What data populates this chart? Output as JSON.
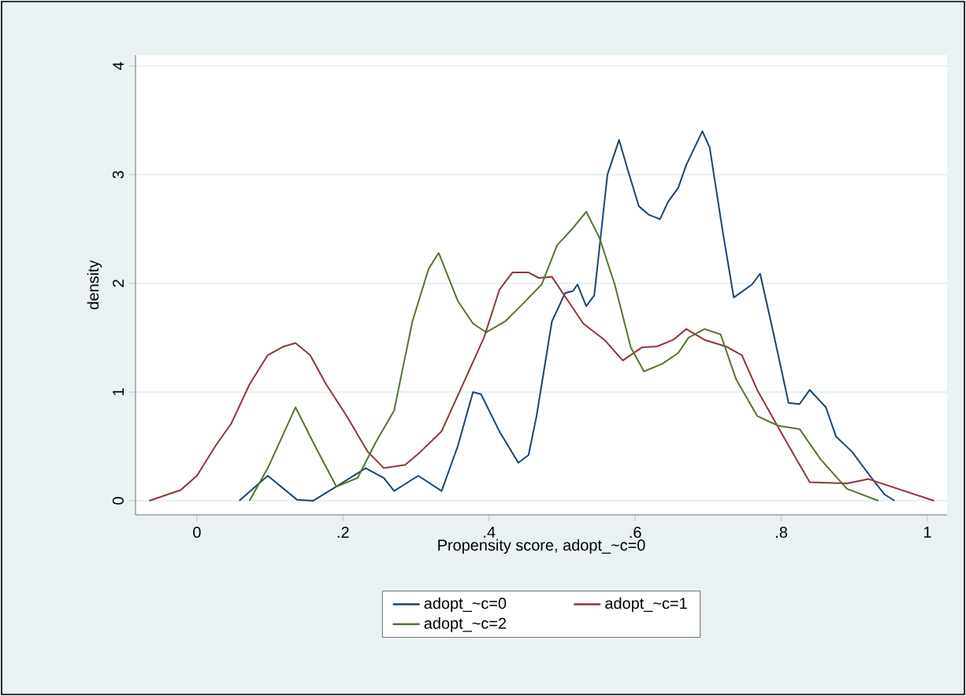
{
  "chart_data": {
    "type": "line",
    "xlabel": "Propensity score, adopt_~c=0",
    "ylabel": "density",
    "xlim": [
      -0.084,
      1.027
    ],
    "ylim": [
      -0.13,
      4.1
    ],
    "xticks": [
      {
        "value": 0,
        "label": "0"
      },
      {
        "value": 0.2,
        "label": ".2"
      },
      {
        "value": 0.4,
        "label": ".4"
      },
      {
        "value": 0.6,
        "label": ".6"
      },
      {
        "value": 0.8,
        "label": ".8"
      },
      {
        "value": 1,
        "label": "1"
      }
    ],
    "yticks": [
      0,
      1,
      2,
      3,
      4
    ],
    "grid": "y",
    "legend": "bottom",
    "marker": "none",
    "line_style": "solid",
    "series": [
      {
        "name": "adopt_~c=0",
        "color": "#1a476f",
        "x": [
          0.058,
          0.097,
          0.137,
          0.159,
          0.198,
          0.231,
          0.256,
          0.27,
          0.303,
          0.335,
          0.357,
          0.378,
          0.389,
          0.414,
          0.44,
          0.454,
          0.465,
          0.486,
          0.504,
          0.515,
          0.521,
          0.533,
          0.544,
          0.562,
          0.578,
          0.59,
          0.605,
          0.619,
          0.634,
          0.645,
          0.659,
          0.67,
          0.692,
          0.702,
          0.72,
          0.735,
          0.76,
          0.771,
          0.789,
          0.81,
          0.825,
          0.839,
          0.861,
          0.875,
          0.897,
          0.919,
          0.941,
          0.955
        ],
        "values": [
          0,
          0.23,
          0.01,
          0,
          0.16,
          0.3,
          0.21,
          0.09,
          0.23,
          0.09,
          0.5,
          1.0,
          0.98,
          0.64,
          0.35,
          0.42,
          0.78,
          1.65,
          1.91,
          1.93,
          1.99,
          1.79,
          1.89,
          3.0,
          3.32,
          3.04,
          2.71,
          2.63,
          2.59,
          2.75,
          2.88,
          3.09,
          3.4,
          3.25,
          2.47,
          1.87,
          1.99,
          2.09,
          1.55,
          0.9,
          0.89,
          1.02,
          0.86,
          0.59,
          0.45,
          0.25,
          0.06,
          0
        ]
      },
      {
        "name": "adopt_~c=1",
        "color": "#90353b",
        "x": [
          -0.065,
          -0.022,
          0,
          0.025,
          0.047,
          0.072,
          0.097,
          0.119,
          0.135,
          0.155,
          0.177,
          0.205,
          0.234,
          0.256,
          0.285,
          0.306,
          0.335,
          0.364,
          0.393,
          0.414,
          0.432,
          0.454,
          0.468,
          0.486,
          0.508,
          0.529,
          0.558,
          0.583,
          0.609,
          0.63,
          0.652,
          0.67,
          0.695,
          0.724,
          0.746,
          0.767,
          0.803,
          0.839,
          0.89,
          0.919,
          1.009
        ],
        "values": [
          0,
          0.1,
          0.23,
          0.5,
          0.71,
          1.07,
          1.34,
          1.42,
          1.45,
          1.34,
          1.07,
          0.78,
          0.45,
          0.3,
          0.33,
          0.45,
          0.64,
          1.07,
          1.5,
          1.94,
          2.1,
          2.1,
          2.05,
          2.06,
          1.84,
          1.63,
          1.48,
          1.29,
          1.41,
          1.42,
          1.48,
          1.58,
          1.48,
          1.42,
          1.34,
          1.02,
          0.59,
          0.17,
          0.16,
          0.2,
          0
        ]
      },
      {
        "name": "adopt_~c=2",
        "color": "#55752f",
        "x": [
          0.072,
          0.097,
          0.135,
          0.162,
          0.191,
          0.22,
          0.245,
          0.27,
          0.295,
          0.317,
          0.331,
          0.357,
          0.378,
          0.396,
          0.422,
          0.443,
          0.472,
          0.493,
          0.515,
          0.533,
          0.551,
          0.572,
          0.594,
          0.612,
          0.637,
          0.659,
          0.673,
          0.695,
          0.717,
          0.738,
          0.767,
          0.796,
          0.825,
          0.854,
          0.89,
          0.933
        ],
        "values": [
          0,
          0.3,
          0.86,
          0.5,
          0.13,
          0.21,
          0.54,
          0.83,
          1.65,
          2.13,
          2.28,
          1.84,
          1.63,
          1.55,
          1.65,
          1.79,
          1.99,
          2.35,
          2.51,
          2.66,
          2.42,
          1.99,
          1.41,
          1.19,
          1.26,
          1.36,
          1.5,
          1.58,
          1.53,
          1.12,
          0.78,
          0.69,
          0.66,
          0.38,
          0.11,
          0
        ]
      }
    ]
  }
}
